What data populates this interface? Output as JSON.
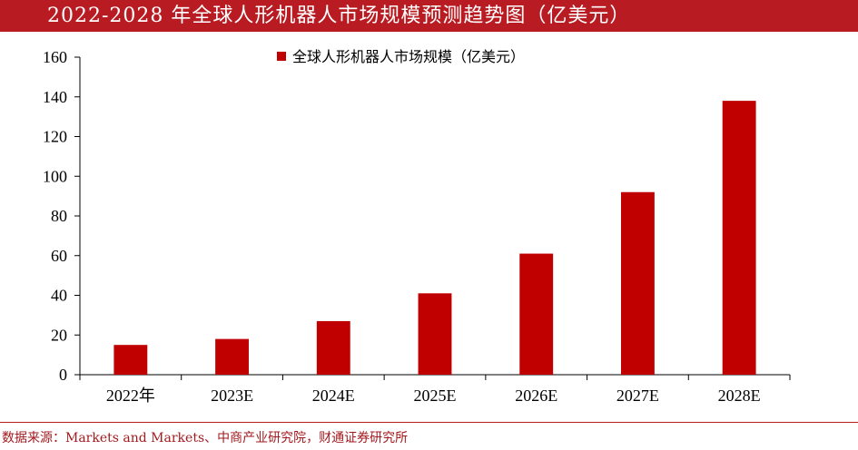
{
  "header": {
    "title": "2022-2028 年全球人形机器人市场规模预测趋势图（亿美元）"
  },
  "footer": {
    "source": "数据来源：Markets and Markets、中商产业研究院，财通证券研究所"
  },
  "colors": {
    "accent": "#b81c22",
    "bar": "#c00000",
    "source_text": "#a21a1e"
  },
  "chart_data": {
    "type": "bar",
    "title": "",
    "xlabel": "",
    "ylabel": "",
    "categories": [
      "2022年",
      "2023E",
      "2024E",
      "2025E",
      "2026E",
      "2027E",
      "2028E"
    ],
    "series": [
      {
        "name": "全球人形机器人市场规模（亿美元）",
        "values": [
          15,
          18,
          27,
          41,
          61,
          92,
          138
        ]
      }
    ],
    "ylim": [
      0,
      160
    ],
    "yticks": [
      0,
      20,
      40,
      60,
      80,
      100,
      120,
      140,
      160
    ],
    "grid": false,
    "legend_position": "top-center"
  }
}
